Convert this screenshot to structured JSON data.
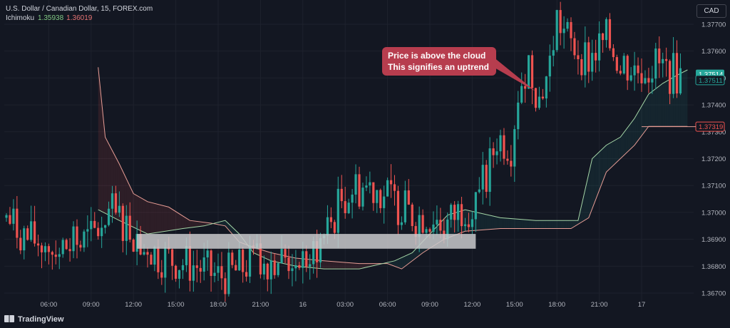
{
  "header": {
    "symbol_line": "U.S. Dollar / Canadian Dollar, 15, FOREX.com",
    "indicator_name": "Ichimoku",
    "indicator_value_1": "1.35938",
    "indicator_value_2": "1.36019"
  },
  "currency_button": "CAD",
  "branding": "TradingView",
  "annotation": {
    "line1": "Price is above the cloud",
    "line2": "This signifies an uptrend"
  },
  "price_tags": [
    {
      "label": "1.37514",
      "value": 1.37514,
      "color": "#26a69a",
      "text_color": "#ffffff"
    },
    {
      "label": "1.37511",
      "value": 1.37492,
      "color": "#131722",
      "text_color": "#26a69a",
      "border": "#26a69a"
    },
    {
      "label": "1.37319",
      "value": 1.37319,
      "color": "#131722",
      "text_color": "#ef5350",
      "border": "#ef5350"
    }
  ],
  "colors": {
    "bull": "#26a69a",
    "bear": "#ef5350",
    "span_a": "#a5d6a7",
    "span_b": "#e79d95",
    "cloud_bull": "rgba(38,166,154,0.10)",
    "cloud_bear": "rgba(239,83,80,0.12)",
    "highlight_box": "#c9c9cb",
    "grid": "#1e222d"
  },
  "chart_data": {
    "type": "candlestick",
    "y_ticks": [
      1.367,
      1.368,
      1.369,
      1.37,
      1.371,
      1.372,
      1.373,
      1.374,
      1.375,
      1.376,
      1.377
    ],
    "y_tick_labels": [
      "1.36700",
      "1.36800",
      "1.36900",
      "1.37000",
      "1.37100",
      "1.37200",
      "1.37300",
      "1.37400",
      "1.37500",
      "1.37600",
      "1.37700"
    ],
    "ylim": [
      1.36655,
      1.3779
    ],
    "x_ticks": [
      {
        "label": "06:00",
        "bar": 12
      },
      {
        "label": "09:00",
        "bar": 24
      },
      {
        "label": "12:00",
        "bar": 36
      },
      {
        "label": "15:00",
        "bar": 48
      },
      {
        "label": "18:00",
        "bar": 60
      },
      {
        "label": "21:00",
        "bar": 72
      },
      {
        "label": "16",
        "bar": 84
      },
      {
        "label": "03:00",
        "bar": 96
      },
      {
        "label": "06:00",
        "bar": 108
      },
      {
        "label": "09:00",
        "bar": 120
      },
      {
        "label": "12:00",
        "bar": 132
      },
      {
        "label": "15:00",
        "bar": 144
      },
      {
        "label": "18:00",
        "bar": 156
      },
      {
        "label": "21:00",
        "bar": 168
      },
      {
        "label": "17",
        "bar": 180
      }
    ],
    "price_segments": [
      [
        0,
        1.3698
      ],
      [
        6,
        1.369
      ],
      [
        12,
        1.3688
      ],
      [
        18,
        1.3687
      ],
      [
        24,
        1.369
      ],
      [
        29,
        1.37
      ],
      [
        33,
        1.3697
      ],
      [
        38,
        1.369
      ],
      [
        43,
        1.3684
      ],
      [
        48,
        1.3682
      ],
      [
        54,
        1.368
      ],
      [
        60,
        1.3676
      ],
      [
        65,
        1.3678
      ],
      [
        70,
        1.3682
      ],
      [
        76,
        1.3683
      ],
      [
        84,
        1.3682
      ],
      [
        90,
        1.369
      ],
      [
        95,
        1.3705
      ],
      [
        98,
        1.3709
      ],
      [
        104,
        1.371
      ],
      [
        110,
        1.3704
      ],
      [
        116,
        1.3698
      ],
      [
        120,
        1.37
      ],
      [
        124,
        1.3694
      ],
      [
        128,
        1.37
      ],
      [
        132,
        1.3705
      ],
      [
        136,
        1.3712
      ],
      [
        139,
        1.3728
      ],
      [
        143,
        1.3725
      ],
      [
        145,
        1.3745
      ],
      [
        148,
        1.3756
      ],
      [
        151,
        1.3742
      ],
      [
        154,
        1.3755
      ],
      [
        156,
        1.3772
      ],
      [
        160,
        1.3762
      ],
      [
        165,
        1.3757
      ],
      [
        170,
        1.3764
      ],
      [
        174,
        1.3756
      ],
      [
        178,
        1.3753
      ],
      [
        184,
        1.3755
      ],
      [
        188,
        1.3752
      ],
      [
        191,
        1.3751
      ]
    ],
    "span_a_points": [
      [
        26,
        1.3701
      ],
      [
        32,
        1.3697
      ],
      [
        40,
        1.3692
      ],
      [
        50,
        1.3694
      ],
      [
        56,
        1.3695
      ],
      [
        62,
        1.3697
      ],
      [
        66,
        1.3692
      ],
      [
        70,
        1.3685
      ],
      [
        75,
        1.3682
      ],
      [
        82,
        1.368
      ],
      [
        90,
        1.3679
      ],
      [
        100,
        1.3679
      ],
      [
        110,
        1.3682
      ],
      [
        115,
        1.3685
      ],
      [
        120,
        1.3692
      ],
      [
        125,
        1.3699
      ],
      [
        130,
        1.3701
      ],
      [
        140,
        1.3698
      ],
      [
        150,
        1.3697
      ],
      [
        162,
        1.3697
      ],
      [
        166,
        1.372
      ],
      [
        170,
        1.3725
      ],
      [
        174,
        1.3728
      ],
      [
        178,
        1.3735
      ],
      [
        182,
        1.3744
      ],
      [
        186,
        1.3748
      ],
      [
        190,
        1.3751
      ],
      [
        193,
        1.3753
      ]
    ],
    "span_b_points": [
      [
        26,
        1.3754
      ],
      [
        28,
        1.3728
      ],
      [
        32,
        1.3718
      ],
      [
        36,
        1.3707
      ],
      [
        40,
        1.3704
      ],
      [
        46,
        1.3702
      ],
      [
        52,
        1.3697
      ],
      [
        58,
        1.3696
      ],
      [
        62,
        1.3695
      ],
      [
        66,
        1.3689
      ],
      [
        70,
        1.3687
      ],
      [
        75,
        1.3685
      ],
      [
        82,
        1.3683
      ],
      [
        90,
        1.3682
      ],
      [
        100,
        1.3681
      ],
      [
        108,
        1.3681
      ],
      [
        112,
        1.3679
      ],
      [
        118,
        1.3685
      ],
      [
        124,
        1.369
      ],
      [
        130,
        1.3693
      ],
      [
        140,
        1.3694
      ],
      [
        150,
        1.3694
      ],
      [
        160,
        1.3694
      ],
      [
        165,
        1.3698
      ],
      [
        170,
        1.3715
      ],
      [
        178,
        1.3725
      ],
      [
        182,
        1.3732
      ],
      [
        186,
        1.3732
      ],
      [
        193,
        1.3732
      ]
    ],
    "highlight_zone": {
      "bar_start": 37,
      "bar_end": 133,
      "y_top": 1.3692,
      "y_bottom": 1.36865
    },
    "annotation_target": {
      "bar": 150,
      "value": 1.3745
    }
  }
}
